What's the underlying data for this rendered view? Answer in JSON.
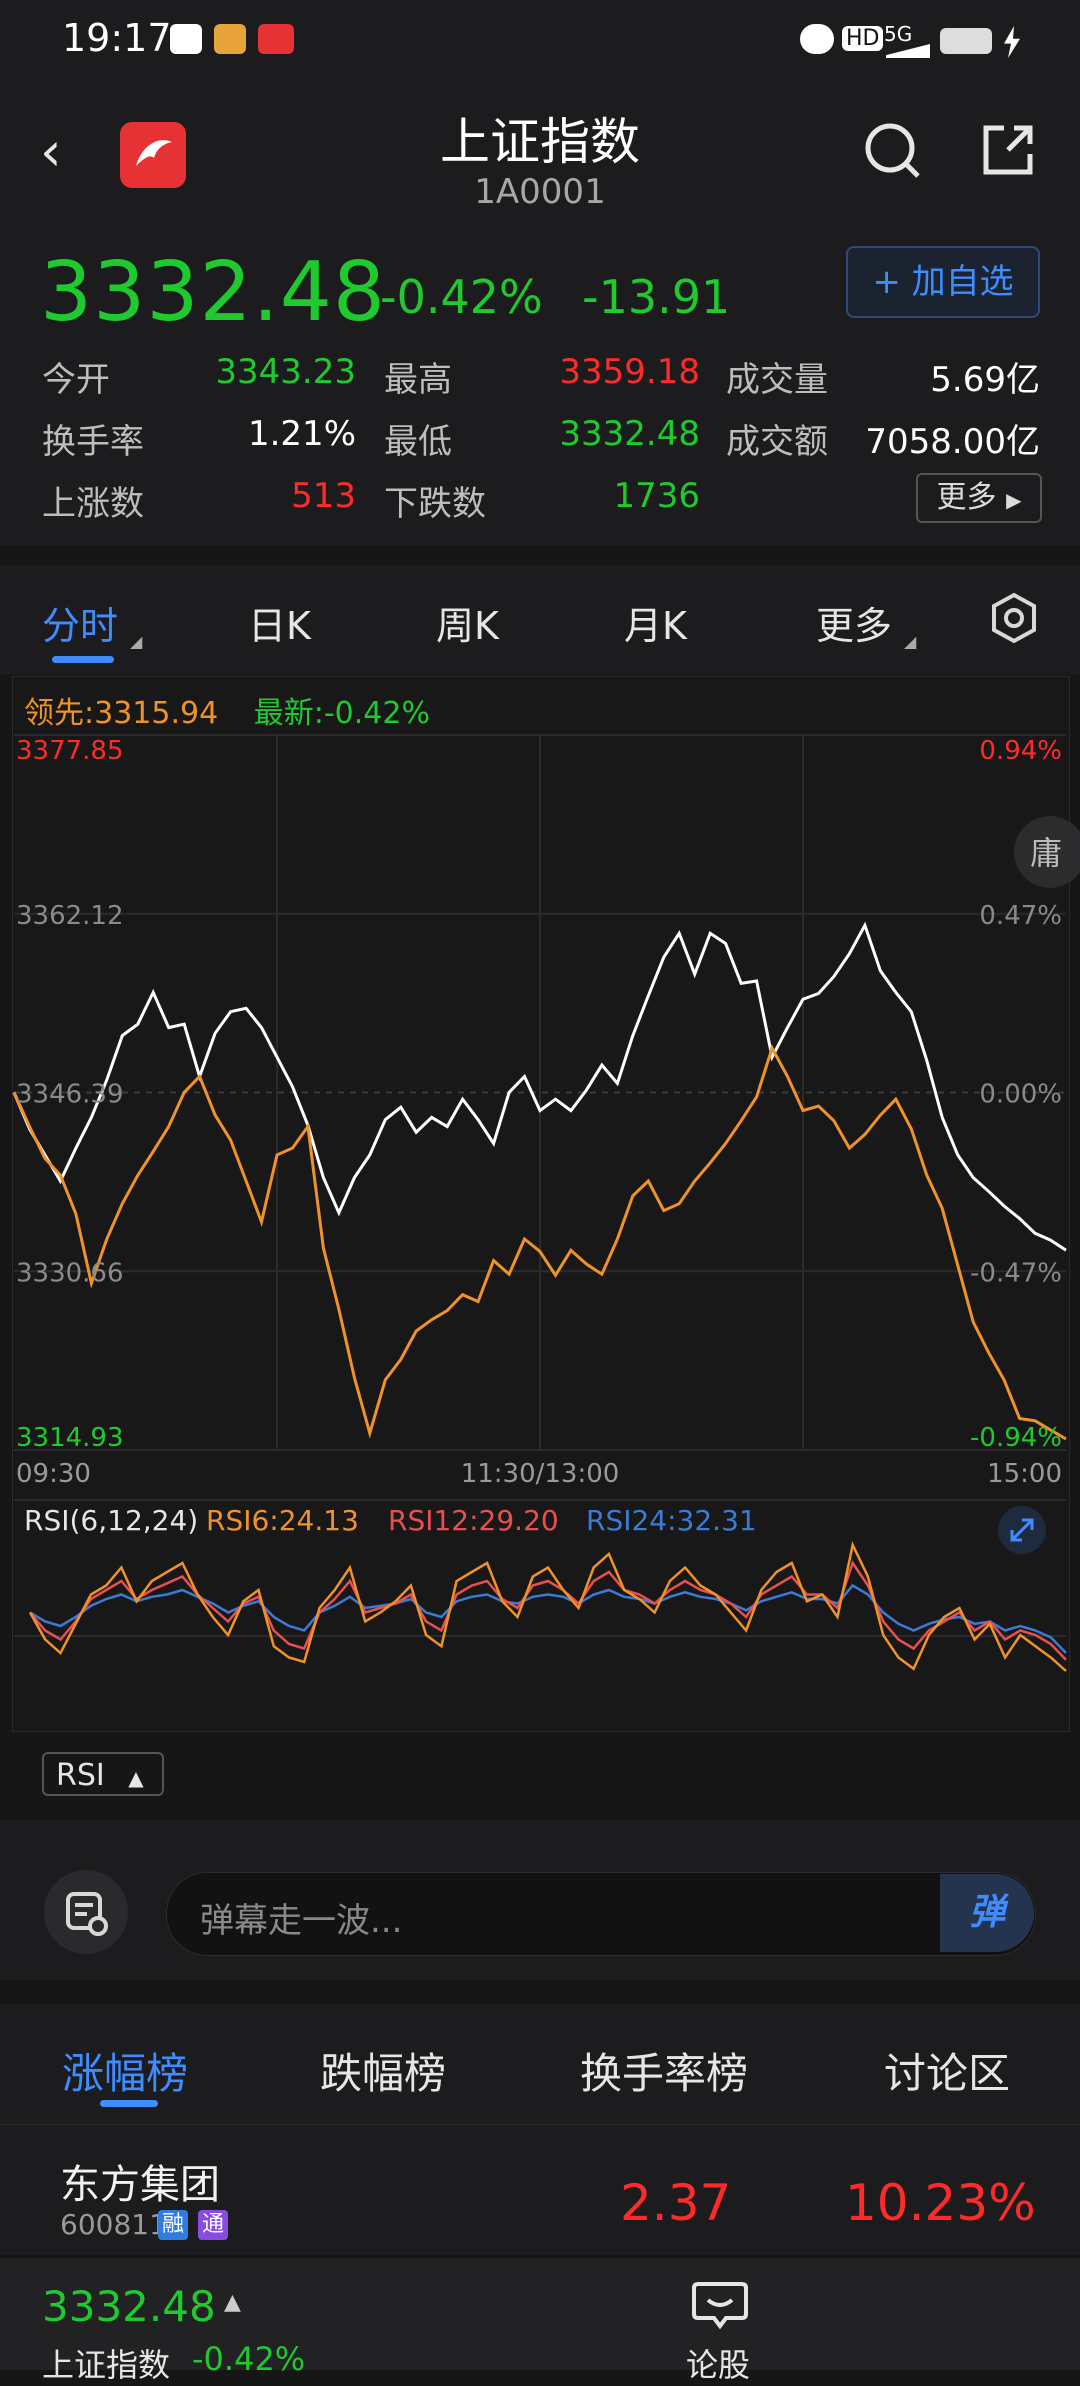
{
  "status_bar": {
    "time": "19:17",
    "hd": "HD",
    "signal": "5G"
  },
  "header": {
    "title": "上证指数",
    "code": "1A0001"
  },
  "quote": {
    "price": "3332.48",
    "change_pct": "-0.42%",
    "change": "-13.91",
    "add_watch": "+ 加自选",
    "stats": [
      {
        "label": "今开",
        "value": "3343.23"
      },
      {
        "label": "最高",
        "value": "3359.18"
      },
      {
        "label": "成交量",
        "value": "5.69亿"
      },
      {
        "label": "换手率",
        "value": "1.21%"
      },
      {
        "label": "最低",
        "value": "3332.48"
      },
      {
        "label": "成交额",
        "value": "7058.00亿"
      },
      {
        "label": "上涨数",
        "value": "513"
      },
      {
        "label": "下跌数",
        "value": "1736"
      }
    ],
    "more": "更多"
  },
  "tabs": [
    "分时",
    "日K",
    "周K",
    "月K",
    "更多"
  ],
  "chart_legend": {
    "lead": "领先:3315.94",
    "latest": "最新:-0.42%"
  },
  "colors": {
    "up": "#ff2b2b",
    "down": "#1fca2f",
    "accent": "#3f8cff",
    "lead_line": "#f0922a",
    "price_line": "#ffffff"
  },
  "chart_data": [
    {
      "type": "line",
      "title": "分时",
      "y_left_ticks": [
        "3377.85",
        "3362.12",
        "3346.39",
        "3330.66",
        "3314.93"
      ],
      "y_right_ticks": [
        "0.94%",
        "0.47%",
        "0.00%",
        "-0.47%",
        "-0.94%"
      ],
      "ylim": [
        3314.93,
        3377.85
      ],
      "x_ticks": [
        "09:30",
        "11:30/13:00",
        "15:00"
      ],
      "side_tab": "庸",
      "series": [
        {
          "name": "最新",
          "color": "#ffffff",
          "values": [
            3346.4,
            3343.2,
            3340.9,
            3338.6,
            3341.5,
            3344.2,
            3347.5,
            3351.4,
            3352.4,
            3355.2,
            3352.1,
            3352.4,
            3347.8,
            3351.6,
            3353.5,
            3353.8,
            3352.1,
            3349.5,
            3346.9,
            3343.5,
            3338.9,
            3335.8,
            3338.9,
            3340.9,
            3344.0,
            3345.1,
            3342.9,
            3344.2,
            3343.4,
            3345.8,
            3344.0,
            3341.9,
            3346.4,
            3347.8,
            3344.8,
            3345.8,
            3344.8,
            3346.6,
            3348.8,
            3347.2,
            3351.4,
            3354.9,
            3358.3,
            3360.4,
            3356.8,
            3360.4,
            3359.5,
            3356.0,
            3356.2,
            3349.5,
            3352.1,
            3354.6,
            3355.1,
            3356.6,
            3358.6,
            3361.1,
            3357.1,
            3355.2,
            3353.5,
            3349.2,
            3344.2,
            3340.9,
            3338.9,
            3337.7,
            3336.4,
            3335.3,
            3334.0,
            3333.4,
            3332.5
          ]
        },
        {
          "name": "领先",
          "color": "#f0922a",
          "values": [
            3346.4,
            3343.4,
            3340.6,
            3339.1,
            3335.7,
            3329.6,
            3333.5,
            3336.6,
            3339.1,
            3341.2,
            3343.4,
            3346.4,
            3347.8,
            3344.4,
            3342.2,
            3338.6,
            3335.0,
            3340.9,
            3341.5,
            3343.4,
            3332.7,
            3327.3,
            3321.3,
            3316.4,
            3321.1,
            3322.9,
            3325.4,
            3326.4,
            3327.2,
            3328.6,
            3328.0,
            3331.6,
            3330.4,
            3333.5,
            3332.4,
            3330.3,
            3332.5,
            3331.3,
            3330.4,
            3333.5,
            3337.3,
            3338.6,
            3336.0,
            3336.6,
            3338.6,
            3340.2,
            3341.9,
            3343.9,
            3346.0,
            3350.3,
            3347.8,
            3344.8,
            3345.2,
            3343.9,
            3341.5,
            3342.7,
            3344.4,
            3345.8,
            3343.2,
            3339.1,
            3336.2,
            3331.2,
            3326.2,
            3323.5,
            3321.1,
            3317.7,
            3317.5,
            3316.7,
            3315.9
          ]
        }
      ]
    },
    {
      "type": "line",
      "title": "RSI(6,12,24)",
      "ylim": [
        0,
        100
      ],
      "series": [
        {
          "name": "RSI6:24.13",
          "color": "#f0922a",
          "values": [
            50,
            38,
            32,
            45,
            58,
            62,
            70,
            55,
            64,
            68,
            72,
            58,
            48,
            40,
            55,
            60,
            35,
            30,
            28,
            52,
            60,
            70,
            46,
            50,
            55,
            62,
            40,
            35,
            64,
            68,
            72,
            55,
            48,
            66,
            70,
            60,
            52,
            70,
            76,
            60,
            56,
            50,
            64,
            70,
            62,
            58,
            50,
            42,
            60,
            68,
            72,
            55,
            58,
            48,
            80,
            66,
            40,
            30,
            25,
            40,
            48,
            52,
            38,
            45,
            30,
            40,
            35,
            30,
            24
          ]
        },
        {
          "name": "RSI12:29.20",
          "color": "#e85050",
          "values": [
            50,
            42,
            38,
            46,
            56,
            60,
            64,
            56,
            60,
            63,
            66,
            58,
            52,
            46,
            54,
            57,
            42,
            36,
            34,
            50,
            56,
            64,
            50,
            52,
            54,
            58,
            46,
            42,
            58,
            62,
            64,
            56,
            52,
            62,
            64,
            60,
            54,
            64,
            68,
            60,
            58,
            54,
            60,
            64,
            60,
            58,
            54,
            48,
            58,
            62,
            66,
            58,
            58,
            52,
            72,
            62,
            46,
            38,
            34,
            42,
            46,
            50,
            42,
            46,
            38,
            42,
            40,
            36,
            29
          ]
        },
        {
          "name": "RSI24:32.31",
          "color": "#3a7bd5",
          "values": [
            50,
            46,
            44,
            48,
            53,
            56,
            58,
            55,
            57,
            58,
            60,
            57,
            54,
            50,
            53,
            55,
            48,
            44,
            42,
            50,
            53,
            57,
            52,
            53,
            54,
            56,
            50,
            48,
            55,
            57,
            58,
            55,
            54,
            57,
            58,
            57,
            54,
            58,
            60,
            57,
            56,
            54,
            57,
            59,
            57,
            56,
            54,
            51,
            55,
            57,
            59,
            56,
            56,
            54,
            62,
            58,
            50,
            45,
            42,
            45,
            47,
            48,
            45,
            46,
            42,
            44,
            42,
            39,
            32
          ]
        }
      ]
    }
  ],
  "rsi_tag": "RSI",
  "danmu": {
    "placeholder": "弹幕走一波...",
    "send": "弹"
  },
  "rank_tabs": [
    "涨幅榜",
    "跌幅榜",
    "换手率榜",
    "讨论区"
  ],
  "rank_rows": [
    {
      "name": "东方集团",
      "code": "600811",
      "badges": [
        "融",
        "通"
      ],
      "price": "2.37",
      "pct": "10.23%"
    }
  ],
  "bottom_bar": {
    "price": "3332.48",
    "name": "上证指数",
    "pct": "-0.42%",
    "talk": "论股"
  }
}
